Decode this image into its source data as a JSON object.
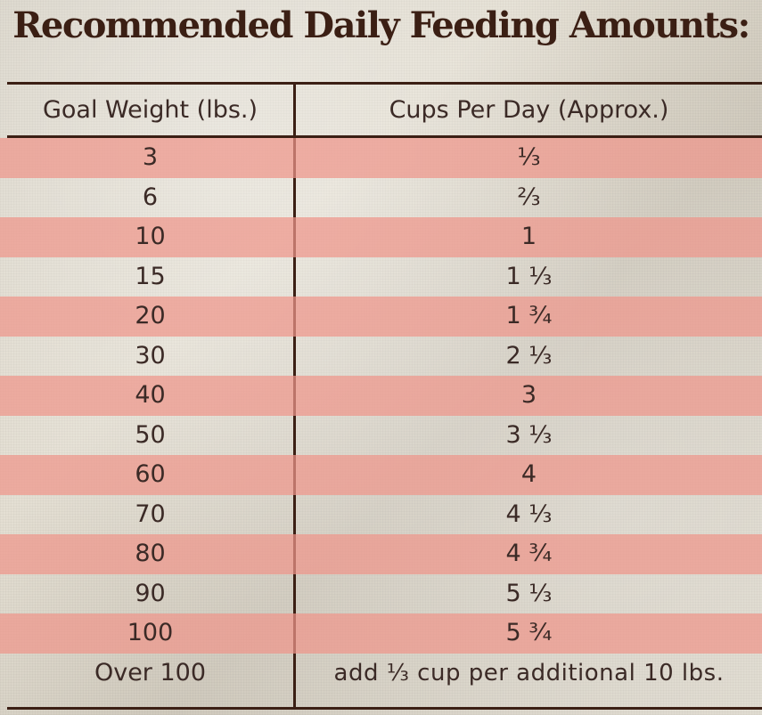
{
  "title": "Recommended Daily Feeding Amounts:",
  "table": {
    "headers": {
      "weight": "Goal Weight (lbs.)",
      "cups": "Cups Per Day (Approx.)"
    },
    "rows": [
      {
        "weight": "3",
        "cups": "⅓"
      },
      {
        "weight": "6",
        "cups": "⅔"
      },
      {
        "weight": "10",
        "cups": "1"
      },
      {
        "weight": "15",
        "cups": "1 ⅓"
      },
      {
        "weight": "20",
        "cups": "1 ¾"
      },
      {
        "weight": "30",
        "cups": "2 ⅓"
      },
      {
        "weight": "40",
        "cups": "3"
      },
      {
        "weight": "50",
        "cups": "3 ⅓"
      },
      {
        "weight": "60",
        "cups": "4"
      },
      {
        "weight": "70",
        "cups": "4 ⅓"
      },
      {
        "weight": "80",
        "cups": "4 ¾"
      },
      {
        "weight": "90",
        "cups": "5 ⅓"
      },
      {
        "weight": "100",
        "cups": "5 ¾"
      }
    ],
    "footer": {
      "weight": "Over 100",
      "cups": "add ⅓ cup per additional 10 lbs."
    }
  },
  "colors": {
    "stripe": "#ee968a",
    "ink": "#3b1f14",
    "background": "#ddd8cc"
  }
}
